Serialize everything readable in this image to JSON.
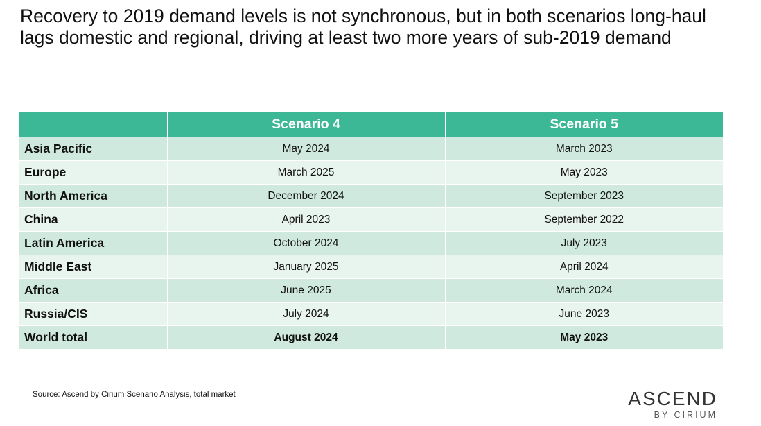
{
  "title": "Recovery to 2019 demand levels is not synchronous, but in both scenarios long-haul lags domestic and regional, driving at least two more years of sub-2019 demand",
  "table": {
    "headers": [
      "",
      "Scenario 4",
      "Scenario 5"
    ],
    "rows": [
      {
        "region": "Asia Pacific",
        "scenario4": "May 2024",
        "scenario5": "March 2023"
      },
      {
        "region": "Europe",
        "scenario4": "March 2025",
        "scenario5": "May 2023"
      },
      {
        "region": "North America",
        "scenario4": "December 2024",
        "scenario5": "September 2023"
      },
      {
        "region": "China",
        "scenario4": "April 2023",
        "scenario5": "September 2022"
      },
      {
        "region": "Latin America",
        "scenario4": "October 2024",
        "scenario5": "July 2023"
      },
      {
        "region": "Middle East",
        "scenario4": "January 2025",
        "scenario5": "April 2024"
      },
      {
        "region": "Africa",
        "scenario4": "June 2025",
        "scenario5": "March 2024"
      },
      {
        "region": "Russia/CIS",
        "scenario4": "July 2024",
        "scenario5": "June 2023"
      },
      {
        "region": "World total",
        "scenario4": "August 2024",
        "scenario5": "May 2023"
      }
    ]
  },
  "source": "Source: Ascend by Cirium Scenario Analysis, total market",
  "logo": {
    "main": "ASCEND",
    "sub": "BY CIRIUM"
  },
  "colors": {
    "header": "#3cb896",
    "row_odd": "#cfe9de",
    "row_even": "#e8f4ee"
  }
}
